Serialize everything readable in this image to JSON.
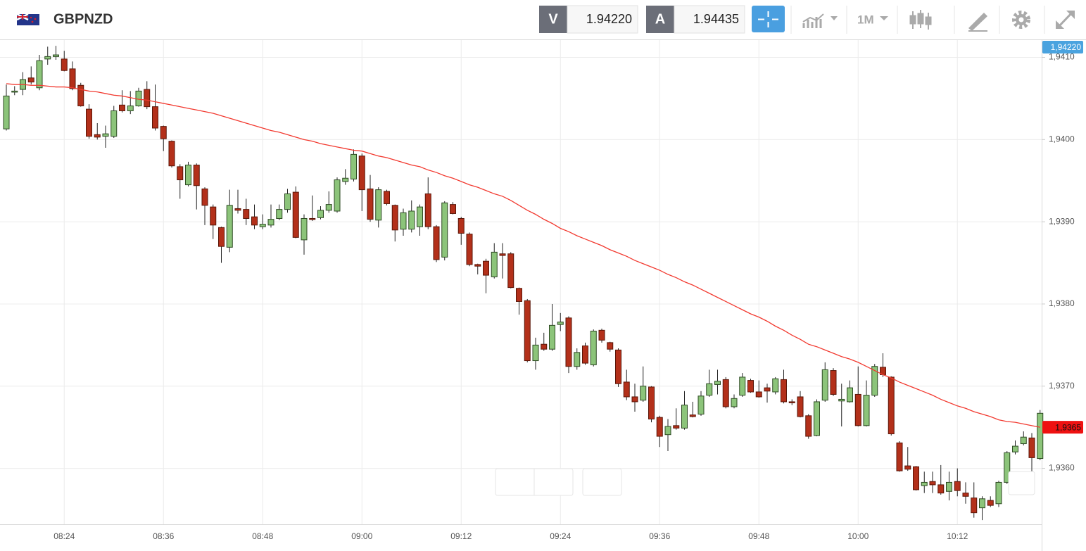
{
  "header": {
    "symbol": "GBPNZD",
    "bid_label": "V",
    "bid": "1.94220",
    "ask_label": "A",
    "ask": "1.94435",
    "timeframe": "1M"
  },
  "chart_data": {
    "type": "candlestick",
    "categories": [
      null,
      null,
      null,
      null,
      null,
      null,
      null,
      "08:24",
      null,
      null,
      null,
      null,
      null,
      null,
      null,
      null,
      null,
      null,
      null,
      "08:36",
      null,
      null,
      null,
      null,
      null,
      null,
      null,
      null,
      null,
      null,
      null,
      "08:48",
      null,
      null,
      null,
      null,
      null,
      null,
      null,
      null,
      null,
      null,
      null,
      "09:00",
      null,
      null,
      null,
      null,
      null,
      null,
      null,
      null,
      null,
      null,
      null,
      "09:12",
      null,
      null,
      null,
      null,
      null,
      null,
      null,
      null,
      null,
      null,
      null,
      "09:24",
      null,
      null,
      null,
      null,
      null,
      null,
      null,
      null,
      null,
      null,
      null,
      "09:36",
      null,
      null,
      null,
      null,
      null,
      null,
      null,
      null,
      null,
      null,
      null,
      "09:48",
      null,
      null,
      null,
      null,
      null,
      null,
      null,
      null,
      null,
      null,
      null,
      "10:00",
      null,
      null,
      null,
      null,
      null,
      null,
      null,
      null,
      null,
      null,
      null,
      "10:12",
      null,
      null,
      null,
      null,
      null,
      null,
      null,
      null,
      null,
      null
    ],
    "open": [
      1.94013,
      1.94058,
      1.94061,
      1.94075,
      1.94063,
      1.94098,
      1.94101,
      1.94098,
      1.94086,
      1.94066,
      1.94037,
      1.94006,
      1.94004,
      1.94004,
      1.94042,
      1.94035,
      1.94041,
      1.94061,
      1.9404,
      1.94016,
      1.93998,
      1.93967,
      1.93945,
      1.93969,
      1.9394,
      1.93918,
      1.93893,
      1.93869,
      1.93916,
      1.93915,
      1.93906,
      1.93894,
      1.93896,
      1.93904,
      1.93915,
      1.93936,
      1.93878,
      1.93904,
      1.93905,
      1.93914,
      1.93913,
      1.93949,
      1.93952,
      1.9398,
      1.9394,
      1.93902,
      1.93937,
      1.9392,
      1.93891,
      1.93891,
      1.93894,
      1.93934,
      1.93894,
      1.93857,
      1.93921,
      1.93904,
      1.93885,
      1.93848,
      1.93852,
      1.93833,
      1.93861,
      1.93861,
      1.93819,
      1.93804,
      1.93731,
      1.93751,
      1.93745,
      1.93775,
      1.93783,
      1.93724,
      1.93749,
      1.93726,
      1.93768,
      1.93753,
      1.93744,
      1.93705,
      1.93687,
      1.93683,
      1.93699,
      1.93662,
      1.93641,
      1.93652,
      1.93649,
      1.93665,
      1.93666,
      1.93689,
      1.93702,
      1.93708,
      1.93675,
      1.93689,
      1.93707,
      1.93693,
      1.93698,
      1.93693,
      1.93708,
      1.93681,
      1.93687,
      1.93664,
      1.9364,
      1.93683,
      1.93719,
      1.93682,
      1.93681,
      1.9369,
      1.93652,
      1.93689,
      1.93723,
      1.93711,
      1.93631,
      1.93603,
      1.93602,
      1.93579,
      1.93584,
      1.9358,
      1.93572,
      1.93584,
      1.9357,
      1.93564,
      1.93552,
      1.93561,
      1.93557,
      1.93583,
      1.9362,
      1.9363,
      1.93637,
      1.93612
    ],
    "high": [
      1.94067,
      1.94065,
      1.94082,
      1.94089,
      1.94103,
      1.94113,
      1.94114,
      1.94108,
      1.94095,
      1.94069,
      1.94043,
      1.9402,
      1.94017,
      1.94041,
      1.9406,
      1.94059,
      1.94063,
      1.94071,
      1.94067,
      1.94017,
      1.93999,
      1.9397,
      1.93973,
      1.93971,
      1.93942,
      1.93921,
      1.93894,
      1.93939,
      1.93939,
      1.93928,
      1.93921,
      1.93909,
      1.93921,
      1.93921,
      1.9394,
      1.93943,
      1.93909,
      1.93932,
      1.93919,
      1.93937,
      1.93954,
      1.93964,
      1.93988,
      1.93983,
      1.93957,
      1.93942,
      1.93939,
      1.93921,
      1.93916,
      1.93926,
      1.93921,
      1.93954,
      1.93896,
      1.93925,
      1.93924,
      1.93906,
      1.93887,
      1.93849,
      1.93855,
      1.93874,
      1.93874,
      1.93863,
      1.9382,
      1.93806,
      1.93759,
      1.93765,
      1.938,
      1.93789,
      1.93785,
      1.93746,
      1.93753,
      1.93769,
      1.9377,
      1.93754,
      1.93746,
      1.9372,
      1.93703,
      1.93724,
      1.937,
      1.93664,
      1.9366,
      1.93673,
      1.93694,
      1.93681,
      1.93694,
      1.9372,
      1.9372,
      1.93711,
      1.9369,
      1.93716,
      1.93709,
      1.93707,
      1.93703,
      1.93711,
      1.9372,
      1.93684,
      1.93694,
      1.93666,
      1.93684,
      1.93729,
      1.93722,
      1.93703,
      1.93707,
      1.93724,
      1.93707,
      1.93727,
      1.9374,
      1.93712,
      1.93633,
      1.93626,
      1.93603,
      1.93596,
      1.93596,
      1.93604,
      1.93596,
      1.936,
      1.93583,
      1.93583,
      1.93566,
      1.93566,
      1.93585,
      1.93621,
      1.93634,
      1.93645,
      1.93643,
      1.93671
    ],
    "low": [
      1.94011,
      1.94054,
      1.94054,
      1.94067,
      1.9406,
      1.94091,
      1.94097,
      1.94083,
      1.9406,
      1.9404,
      1.94001,
      1.94,
      1.9399,
      1.94002,
      1.94033,
      1.94031,
      1.9404,
      1.94037,
      1.94011,
      1.93986,
      1.93966,
      1.93928,
      1.93943,
      1.93915,
      1.93896,
      1.93879,
      1.9385,
      1.93863,
      1.9391,
      1.93896,
      1.93891,
      1.93891,
      1.93893,
      1.93902,
      1.93911,
      1.9388,
      1.9386,
      1.93901,
      1.93903,
      1.93911,
      1.93911,
      1.93945,
      1.93949,
      1.93913,
      1.939,
      1.93893,
      1.9392,
      1.93876,
      1.93883,
      1.93887,
      1.93883,
      1.93891,
      1.93851,
      1.93853,
      1.93909,
      1.93872,
      1.93846,
      1.93836,
      1.93813,
      1.93831,
      1.93831,
      1.93819,
      1.93787,
      1.93729,
      1.9372,
      1.93743,
      1.93743,
      1.93767,
      1.93716,
      1.9372,
      1.93726,
      1.93724,
      1.93753,
      1.93742,
      1.93699,
      1.93683,
      1.93669,
      1.93681,
      1.93656,
      1.93626,
      1.93621,
      1.93647,
      1.93647,
      1.93662,
      1.93664,
      1.93687,
      1.9369,
      1.93673,
      1.93673,
      1.93687,
      1.93692,
      1.93686,
      1.9368,
      1.9369,
      1.93679,
      1.93677,
      1.93662,
      1.93636,
      1.93639,
      1.93681,
      1.93688,
      1.93651,
      1.9368,
      1.93651,
      1.93651,
      1.93687,
      1.93711,
      1.9364,
      1.93596,
      1.93597,
      1.93573,
      1.9357,
      1.9357,
      1.93568,
      1.93561,
      1.93566,
      1.93557,
      1.9354,
      1.93537,
      1.93553,
      1.93553,
      1.93581,
      1.93617,
      1.93628,
      1.93593,
      1.9361
    ],
    "close": [
      1.94053,
      1.94059,
      1.94073,
      1.9407,
      1.94096,
      1.94101,
      1.94103,
      1.94084,
      1.94062,
      1.94041,
      1.94004,
      1.94003,
      1.94007,
      1.94035,
      1.94035,
      1.94041,
      1.94059,
      1.9404,
      1.94014,
      1.94001,
      1.93968,
      1.93951,
      1.93969,
      1.93944,
      1.9392,
      1.93896,
      1.9387,
      1.9392,
      1.93914,
      1.93904,
      1.93896,
      1.93897,
      1.93903,
      1.93915,
      1.93934,
      1.93881,
      1.93904,
      1.93903,
      1.93914,
      1.93921,
      1.93951,
      1.93953,
      1.93982,
      1.93939,
      1.93903,
      1.93939,
      1.93922,
      1.9389,
      1.93911,
      1.93913,
      1.93918,
      1.93894,
      1.93854,
      1.93923,
      1.9391,
      1.93886,
      1.93848,
      1.93846,
      1.93835,
      1.93863,
      1.93859,
      1.9382,
      1.93803,
      1.93731,
      1.9375,
      1.93745,
      1.93774,
      1.93778,
      1.93724,
      1.93741,
      1.93728,
      1.93767,
      1.93756,
      1.93745,
      1.93703,
      1.93687,
      1.93681,
      1.937,
      1.9366,
      1.93639,
      1.93651,
      1.93649,
      1.93677,
      1.93663,
      1.93688,
      1.93703,
      1.93706,
      1.93675,
      1.93685,
      1.93711,
      1.93693,
      1.93687,
      1.93694,
      1.93709,
      1.93681,
      1.9368,
      1.93663,
      1.93639,
      1.93681,
      1.9372,
      1.9369,
      1.93684,
      1.93698,
      1.93652,
      1.93689,
      1.93724,
      1.93714,
      1.93642,
      1.93597,
      1.93599,
      1.93574,
      1.93583,
      1.9358,
      1.9357,
      1.93583,
      1.93573,
      1.93566,
      1.93546,
      1.93563,
      1.93555,
      1.93583,
      1.93619,
      1.93627,
      1.93638,
      1.93613,
      1.93667
    ],
    "up_color": "#8cc47a",
    "down_color": "#b3301a",
    "overlay": {
      "color": "#f23a30",
      "values": [
        1.94068,
        1.94067,
        1.94067,
        1.94066,
        1.94066,
        1.94065,
        1.94064,
        1.94064,
        1.94063,
        1.94061,
        1.94059,
        1.94058,
        1.94056,
        1.94054,
        1.94053,
        1.94051,
        1.94049,
        1.94048,
        1.94046,
        1.94044,
        1.94042,
        1.9404,
        1.94038,
        1.94036,
        1.94034,
        1.94032,
        1.94029,
        1.94026,
        1.94023,
        1.9402,
        1.94017,
        1.94014,
        1.94011,
        1.94009,
        1.94006,
        1.94003,
        1.94,
        1.93998,
        1.93995,
        1.93993,
        1.93991,
        1.93989,
        1.93987,
        1.93986,
        1.93983,
        1.9398,
        1.93978,
        1.93975,
        1.93972,
        1.93969,
        1.93967,
        1.93963,
        1.9396,
        1.93956,
        1.93953,
        1.93949,
        1.93945,
        1.93942,
        1.93938,
        1.93934,
        1.93931,
        1.93926,
        1.9392,
        1.93914,
        1.93909,
        1.93903,
        1.93898,
        1.93892,
        1.93888,
        1.93883,
        1.93879,
        1.93875,
        1.93871,
        1.93866,
        1.93862,
        1.93858,
        1.93853,
        1.93849,
        1.93845,
        1.93841,
        1.93836,
        1.93832,
        1.93827,
        1.93823,
        1.93818,
        1.93813,
        1.93808,
        1.93803,
        1.93798,
        1.93793,
        1.93788,
        1.93784,
        1.93779,
        1.93773,
        1.93768,
        1.93762,
        1.93757,
        1.93751,
        1.93748,
        1.93744,
        1.9374,
        1.93736,
        1.93733,
        1.93729,
        1.93724,
        1.93719,
        1.93714,
        1.9371,
        1.93705,
        1.93701,
        1.93697,
        1.93693,
        1.93689,
        1.93684,
        1.9368,
        1.93676,
        1.93673,
        1.93669,
        1.93666,
        1.93663,
        1.93659,
        1.93657,
        1.93656,
        1.93654,
        1.93652,
        1.9365
      ]
    },
    "ylim": [
      1.93532,
      1.94121
    ],
    "yticks": [
      {
        "value": 1.936,
        "label": "1,9360"
      },
      {
        "value": 1.937,
        "label": "1,9370"
      },
      {
        "value": 1.938,
        "label": "1,9380"
      },
      {
        "value": 1.939,
        "label": "1,9390"
      },
      {
        "value": 1.94,
        "label": "1,9400"
      },
      {
        "value": 1.941,
        "label": "1,9410"
      }
    ],
    "grid": true,
    "price_labels": [
      {
        "value": 1.9422,
        "label": "1,94220",
        "color": "#4aa3df"
      },
      {
        "value": 1.9365,
        "label": "1,9365",
        "color": "#ee1111"
      }
    ]
  }
}
